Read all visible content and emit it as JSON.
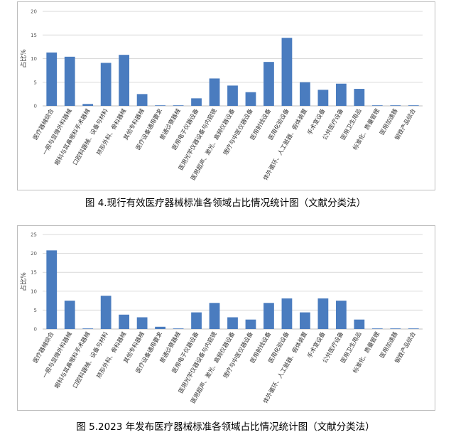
{
  "chart_data": [
    {
      "type": "bar",
      "caption": "图 4.现行有效医疗器械标准各领域占比情况统计图（文献分类法）",
      "ylabel": "占比%",
      "ylim": [
        0,
        20
      ],
      "yticks": [
        0,
        5,
        10,
        15,
        20
      ],
      "grid": true,
      "bar_color": "#4a7cbf",
      "categories": [
        "医疗器械综合",
        "一般与显微外科器械",
        "眼科与耳鼻喉科手术器械",
        "口腔科器械、设备与材料",
        "矫形外科、骨科器械",
        "其他专科器械",
        "医疗设备通用要求",
        "普通诊察器械",
        "医用电子仪器设备",
        "医用光学仪器设备与内窥镜",
        "医用超声、激光、高频仪器设备",
        "理疗与中医仪器设备",
        "医用射线设备",
        "医用化验设备",
        "体外循环、人工脏器、假体装置",
        "手术室设备",
        "公共医疗设备",
        "医用卫生用品",
        "标准化、质量管理",
        "医用加速器",
        "钢铁产品综合"
      ],
      "values": [
        11.3,
        10.4,
        0.4,
        9.1,
        10.8,
        2.5,
        0.1,
        0.1,
        1.6,
        5.8,
        4.3,
        2.9,
        9.3,
        14.4,
        5.0,
        3.4,
        4.7,
        3.6,
        0.1,
        0.1,
        0.1
      ]
    },
    {
      "type": "bar",
      "caption": "图 5.2023 年发布医疗器械标准各领域占比情况统计图（文献分类法）",
      "ylabel": "占比%",
      "ylim": [
        0,
        25
      ],
      "yticks": [
        0,
        5,
        10,
        15,
        20,
        25
      ],
      "grid": true,
      "bar_color": "#4a7cbf",
      "categories": [
        "医疗器械综合",
        "一般与显微外科器械",
        "眼科与耳鼻喉科手术器械",
        "口腔科器械、设备与材料",
        "矫形外科、骨科器械",
        "其他专科器械",
        "医疗设备通用要求",
        "普通诊察器械",
        "医用电子仪器设备",
        "医用光学仪器设备与内窥镜",
        "医用超声、激光、高频仪器设备",
        "理疗与中医仪器设备",
        "医用射线设备",
        "医用化验设备",
        "体外循环、人工脏器、假体装置",
        "手术室设备",
        "公共医疗设备",
        "医用卫生用品",
        "标准化、质量管理",
        "医用加速器",
        "钢铁产品综合"
      ],
      "values": [
        20.8,
        7.5,
        0,
        8.8,
        3.8,
        3.1,
        0.6,
        0,
        4.4,
        6.9,
        3.1,
        2.5,
        6.9,
        8.1,
        4.4,
        8.1,
        7.5,
        2.5,
        0,
        0,
        0
      ]
    }
  ]
}
